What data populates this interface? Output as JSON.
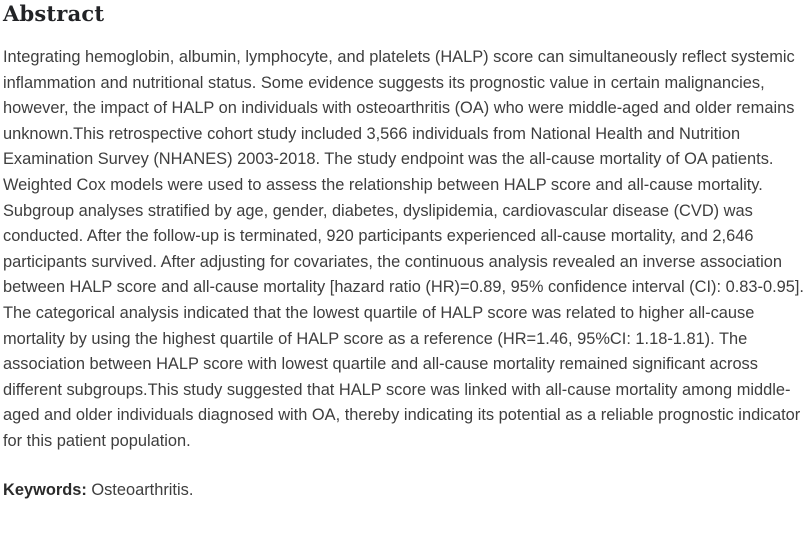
{
  "abstract": {
    "heading": "Abstract",
    "body": "Integrating hemoglobin, albumin, lymphocyte, and platelets (HALP) score can simultaneously reflect systemic inflammation and nutritional status. Some evidence suggests its prognostic value in certain malignancies, however, the impact of HALP on individuals with osteoarthritis (OA) who were middle-aged and older remains unknown.This retrospective cohort study included 3,566 individuals from National Health and Nutrition Examination Survey (NHANES) 2003-2018. The study endpoint was the all-cause mortality of OA patients. Weighted Cox models were used to assess the relationship between HALP score and all-cause mortality. Subgroup analyses stratified by age, gender, diabetes, dyslipidemia, cardiovascular disease (CVD) was conducted. After the follow-up is terminated, 920 participants experienced all-cause mortality, and 2,646 participants survived. After adjusting for covariates, the continuous analysis revealed an inverse association between HALP score and all-cause mortality [hazard ratio (HR)=0.89, 95% confidence interval (CI): 0.83-0.95]. The categorical analysis indicated that the lowest quartile of HALP score was related to higher all-cause mortality by using the highest quartile of HALP score as a reference (HR=1.46, 95%CI: 1.18-1.81). The association between HALP score with lowest quartile and all-cause mortality remained significant across different subgroups.This study suggested that HALP score was linked with all-cause mortality among middle-aged and older individuals diagnosed with OA, thereby indicating its potential as a reliable prognostic indicator for this patient population.",
    "keywords_label": "Keywords:",
    "keywords_value": "Osteoarthritis."
  },
  "colors": {
    "background": "#ffffff",
    "heading_text": "#222326",
    "body_text": "#3e3e3e"
  }
}
